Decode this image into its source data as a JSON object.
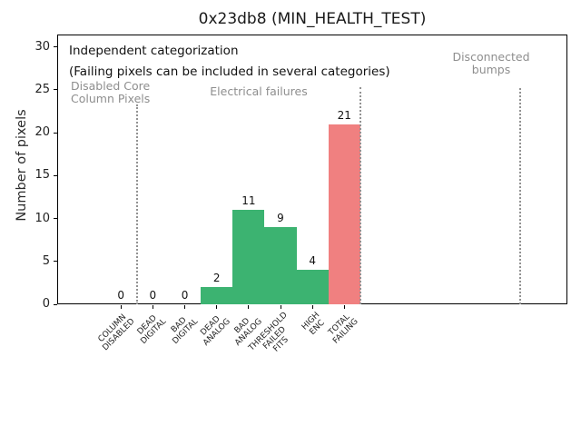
{
  "figure": {
    "title": "0x23db8 (MIN_HEALTH_TEST)"
  },
  "chart_data": {
    "type": "bar",
    "title": "0x23db8 (MIN_HEALTH_TEST)",
    "xlabel": "",
    "ylabel": "Number of pixels",
    "categories": [
      "COLUMN\nDISABLED",
      "DEAD\nDIGITAL",
      "BAD\nDIGITAL",
      "DEAD\nANALOG",
      "BAD\nANALOG",
      "THRESHOLD\nFAILED\nFITS",
      "HIGH\nENC",
      "TOTAL\nFAILING"
    ],
    "values": [
      0,
      0,
      0,
      2,
      11,
      9,
      4,
      21
    ],
    "value_labels": [
      "0",
      "0",
      "0",
      "2",
      "11",
      "9",
      "4",
      "21"
    ],
    "bar_colors": [
      "#3cb371",
      "#3cb371",
      "#3cb371",
      "#3cb371",
      "#3cb371",
      "#3cb371",
      "#3cb371",
      "#f08080"
    ],
    "yticks": [
      0,
      5,
      10,
      15,
      20,
      25,
      30
    ],
    "ylim": [
      0,
      31.4
    ],
    "xlim": [
      -2,
      14
    ],
    "grid": false,
    "legend": null,
    "bar_width": 1.0,
    "annotations": [
      {
        "text": "Independent categorization",
        "color": "#111111"
      },
      {
        "text": "(Failing pixels can be included in several categories)",
        "color": "#111111"
      },
      {
        "text": "Disabled Core\nColumn Pixels",
        "color": "#8e8e8e"
      },
      {
        "text": "Electrical failures",
        "color": "#8e8e8e"
      },
      {
        "text": "Disconnected\nbumps",
        "color": "#8e8e8e"
      }
    ],
    "dividers_x": [
      0.5,
      7.5,
      12.5
    ]
  },
  "colors": {
    "bar_green": "#3cb371",
    "bar_red": "#f08080",
    "annotation_gray": "#8e8e8e",
    "divider_gray": "#929292",
    "axis_black": "#000000"
  }
}
